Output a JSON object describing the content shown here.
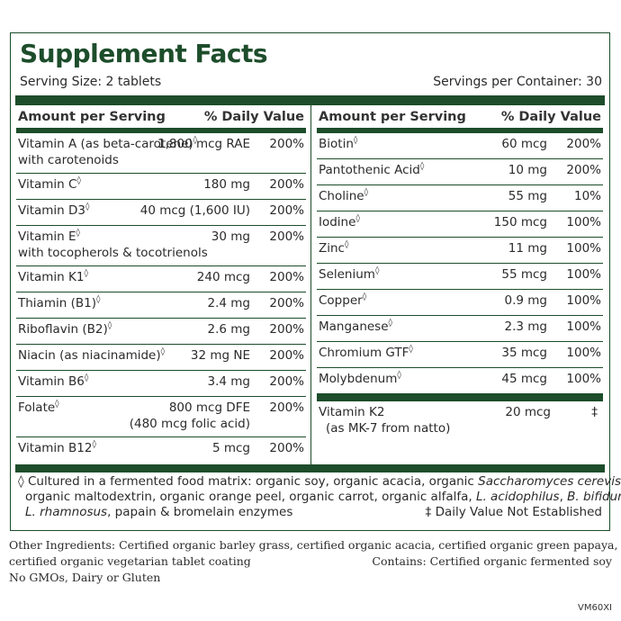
{
  "title": "Supplement Facts",
  "serving_size": "Serving Size: 2 tablets",
  "servings_per_container": "Servings per Container: 30",
  "header": {
    "amount_label": "Amount per Serving",
    "dv_label": "% Daily Value"
  },
  "left_rows": [
    {
      "name": "Vitamin A (as beta-carotene)",
      "sub": "with carotenoids",
      "amount": "1,800 mcg RAE",
      "dv": "200%"
    },
    {
      "name": "Vitamin C",
      "amount": "180 mg",
      "dv": "200%"
    },
    {
      "name": "Vitamin D3",
      "amount": "40 mcg (1,600 IU)",
      "dv": "200%"
    },
    {
      "name": "Vitamin E",
      "sub": "with tocopherols & tocotrienols",
      "amount": "30 mg",
      "dv": "200%"
    },
    {
      "name": "Vitamin K1",
      "amount": "240 mcg",
      "dv": "200%"
    },
    {
      "name": "Thiamin (B1)",
      "amount": "2.4 mg",
      "dv": "200%"
    },
    {
      "name": "Riboflavin (B2)",
      "amount": "2.6 mg",
      "dv": "200%"
    },
    {
      "name": "Niacin (as niacinamide)",
      "amount": "32 mg NE",
      "dv": "200%"
    },
    {
      "name": "Vitamin B6",
      "amount": "3.4 mg",
      "dv": "200%"
    },
    {
      "name": "Folate",
      "amount": "800 mcg DFE",
      "amount2": "(480 mcg folic acid)",
      "dv": "200%"
    },
    {
      "name": "Vitamin B12",
      "amount": "5 mcg",
      "dv": "200%"
    }
  ],
  "right_rows": [
    {
      "name": "Biotin",
      "amount": "60 mcg",
      "dv": "200%"
    },
    {
      "name": "Pantothenic Acid",
      "amount": "10 mg",
      "dv": "200%"
    },
    {
      "name": "Choline",
      "amount": "55 mg",
      "dv": "10%"
    },
    {
      "name": "Iodine",
      "amount": "150 mcg",
      "dv": "100%"
    },
    {
      "name": "Zinc",
      "amount": "11 mg",
      "dv": "100%"
    },
    {
      "name": "Selenium",
      "amount": "55 mcg",
      "dv": "100%"
    },
    {
      "name": "Copper",
      "amount": "0.9 mg",
      "dv": "100%"
    },
    {
      "name": "Manganese",
      "amount": "2.3 mg",
      "dv": "100%"
    },
    {
      "name": "Chromium GTF",
      "amount": "35 mcg",
      "dv": "100%"
    },
    {
      "name": "Molybdenum",
      "amount": "45 mcg",
      "dv": "100%"
    }
  ],
  "vitamin_k2": {
    "name": "Vitamin K2",
    "sub": "(as MK-7 from natto)",
    "amount": "20 mcg",
    "dv": "‡"
  },
  "symbol_diamond": "◊",
  "footnote": {
    "l1_a": "Cultured in a fermented food matrix: organic soy, organic acacia, organic ",
    "l1_b": "Saccharomyces cerevisiae",
    "l1_c": ",",
    "l2_a": "organic maltodextrin, organic orange peel, organic carrot, organic alfalfa, ",
    "l2_b": "L. acidophilus",
    "l2_c": ", ",
    "l2_d": "B. bifidum",
    "l2_e": ",",
    "l3_a": "L. rhamnosus",
    "l3_b": ", papain & bromelain enzymes",
    "dagger_note": "‡ Daily Value Not Established"
  },
  "other": {
    "line1": "Other Ingredients: Certified organic barley grass, certified organic acacia, certified organic green papaya,",
    "line2": "certified organic vegetarian tablet coating",
    "contains": "Contains: Certified organic fermented soy",
    "line3": "No GMOs, Dairy or Gluten"
  },
  "product_code": "VM60XI",
  "colors": {
    "brand_green": "#1d4d2b"
  }
}
